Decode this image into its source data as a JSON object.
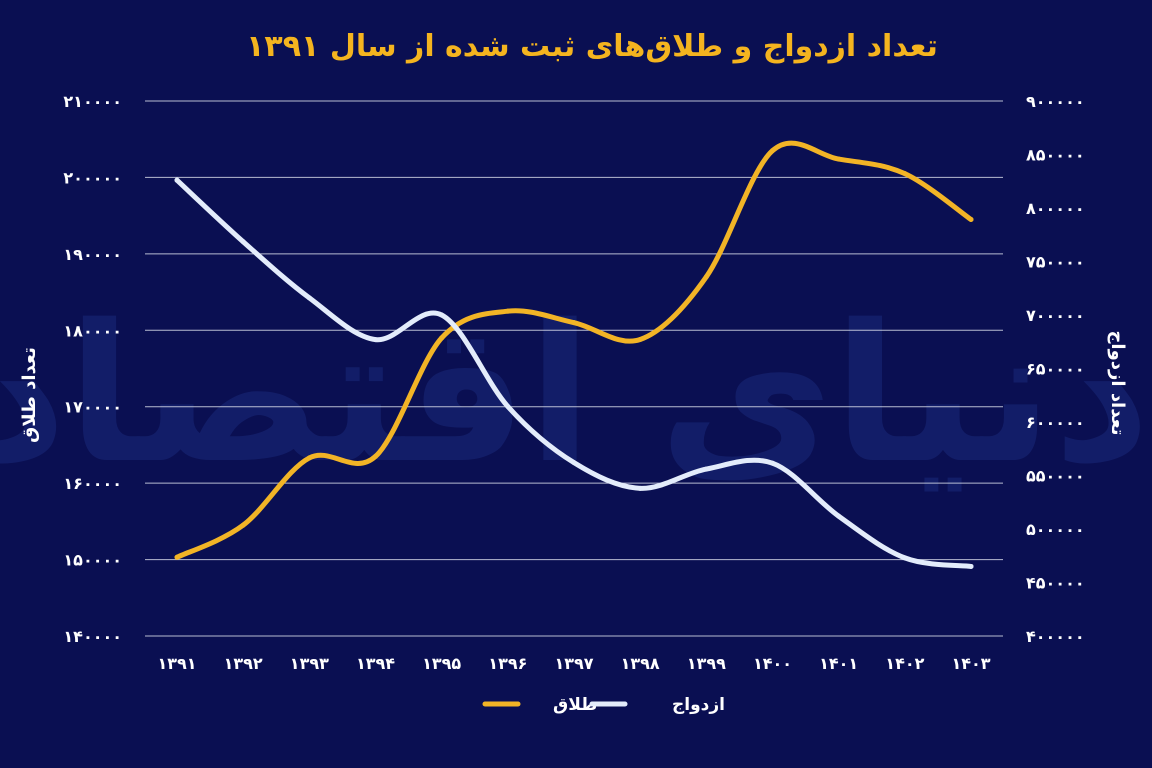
{
  "colors": {
    "background": "#0a0f52",
    "title": "#f4b41f",
    "divorce": "#f2b426",
    "marriage": "#e3ecfb",
    "text": "#ffffff",
    "grid": "#d7dbe8",
    "watermark": "#1a2a7a"
  },
  "watermark": "دنیای اقتصاد",
  "chart_data": {
    "type": "line",
    "title": "تعداد ازدواج و طلاق‌های ثبت شده از سال ۱۳۹۱",
    "categories": [
      "۱۳۹۱",
      "۱۳۹۲",
      "۱۳۹۳",
      "۱۳۹۴",
      "۱۳۹۵",
      "۱۳۹۶",
      "۱۳۹۷",
      "۱۳۹۸",
      "۱۳۹۹",
      "۱۴۰۰",
      "۱۴۰۱",
      "۱۴۰۲",
      "۱۴۰۳"
    ],
    "left_axis": {
      "label": "تعداد طلاق",
      "range": [
        140000,
        210000
      ],
      "ticks": [
        "۲۱۰۰۰۰",
        "۲۰۰۰۰۰",
        "۱۹۰۰۰۰",
        "۱۸۰۰۰۰",
        "۱۷۰۰۰۰",
        "۱۶۰۰۰۰",
        "۱۵۰۰۰۰",
        "۱۴۰۰۰۰"
      ]
    },
    "right_axis": {
      "label": "تعداد ازدواج",
      "range": [
        400000,
        900000
      ],
      "ticks": [
        "۹۰۰۰۰۰",
        "۸۵۰۰۰۰",
        "۸۰۰۰۰۰",
        "۷۵۰۰۰۰",
        "۷۰۰۰۰۰",
        "۶۵۰۰۰۰",
        "۶۰۰۰۰۰",
        "۵۵۰۰۰۰",
        "۵۰۰۰۰۰",
        "۴۵۰۰۰۰",
        "۴۰۰۰۰۰"
      ]
    },
    "grid": true,
    "legend_position": "bottom-center",
    "series": [
      {
        "name": "طلاق",
        "axis": "left",
        "values": [
          150300,
          154500,
          163300,
          163500,
          179000,
          182500,
          181000,
          178800,
          187000,
          203500,
          202400,
          200500,
          194500
        ]
      },
      {
        "name": "ازدواج",
        "axis": "right",
        "values": [
          826000,
          768500,
          716000,
          677000,
          700000,
          614500,
          562000,
          538000,
          556000,
          561500,
          512000,
          473000,
          465000
        ]
      }
    ]
  }
}
